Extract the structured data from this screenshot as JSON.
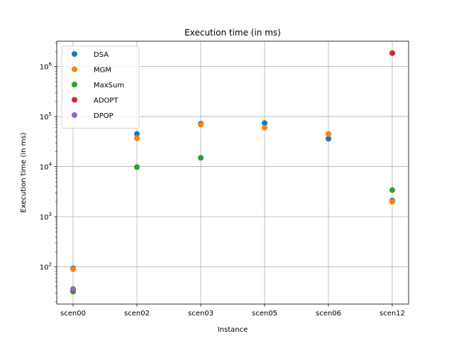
{
  "chart_data": {
    "type": "scatter",
    "title": "Execution time (in ms)",
    "xlabel": "Instance",
    "ylabel": "Execution time (in ms)",
    "yscale": "log",
    "ylim": [
      18,
      3200000
    ],
    "grid": true,
    "legend_position": "top-left",
    "categories": [
      "scen00",
      "scen02",
      "scen03",
      "scen05",
      "scen06",
      "scen12"
    ],
    "y_ticks": [
      {
        "base": "10",
        "exp": "2",
        "value": 100
      },
      {
        "base": "10",
        "exp": "3",
        "value": 1000
      },
      {
        "base": "10",
        "exp": "4",
        "value": 10000
      },
      {
        "base": "10",
        "exp": "5",
        "value": 100000
      },
      {
        "base": "10",
        "exp": "6",
        "value": 1000000
      }
    ],
    "series": [
      {
        "name": "DSA",
        "color": "#1f77b4",
        "values": [
          93,
          45000,
          72000,
          74000,
          36000,
          2100
        ]
      },
      {
        "name": "MGM",
        "color": "#ff7f0e",
        "values": [
          90,
          37000,
          69000,
          60000,
          45000,
          2000
        ]
      },
      {
        "name": "MaxSum",
        "color": "#2ca02c",
        "values": [
          32,
          9800,
          15000,
          null,
          null,
          3400
        ]
      },
      {
        "name": "ADOPT",
        "color": "#d62728",
        "values": [
          35,
          null,
          null,
          null,
          null,
          1850000
        ]
      },
      {
        "name": "DPOP",
        "color": "#9467bd",
        "values": [
          36,
          null,
          null,
          null,
          null,
          null
        ]
      }
    ]
  }
}
